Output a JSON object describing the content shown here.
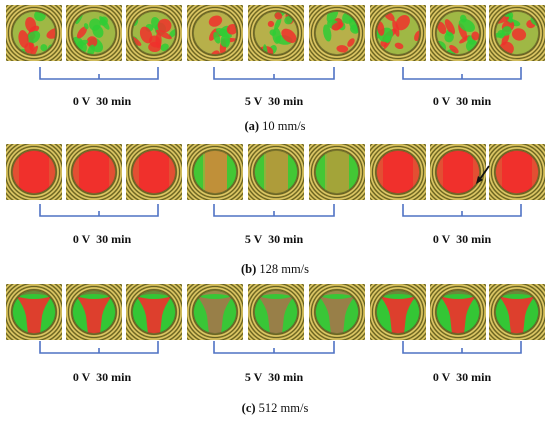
{
  "panels": [
    {
      "id": "a",
      "label": "(a)",
      "speed": "10 mm/s",
      "pattern": "mottled",
      "groups": [
        {
          "condition": "0 V  30 min"
        },
        {
          "condition": "5 V  30 min"
        },
        {
          "condition": "0 V  30 min"
        }
      ]
    },
    {
      "id": "b",
      "label": "(b)",
      "speed": "128 mm/s",
      "pattern": "uniform-red",
      "groups": [
        {
          "condition": "0 V  30 min"
        },
        {
          "condition": "5 V  30 min"
        },
        {
          "condition": "0 V  30 min"
        }
      ]
    },
    {
      "id": "c",
      "label": "(c)",
      "speed": "512 mm/s",
      "pattern": "u-shape",
      "groups": [
        {
          "condition": "0 V  30 min"
        },
        {
          "condition": "5 V  30 min"
        },
        {
          "condition": "0 V  30 min"
        }
      ]
    }
  ],
  "colors": {
    "background_gold": "#b9a23d",
    "ring_dark": "#4a4d1f",
    "ring_light": "#e8d780",
    "red": "#f0302c",
    "green": "#2fcc35",
    "bracket_blue": "#4f72c4"
  }
}
